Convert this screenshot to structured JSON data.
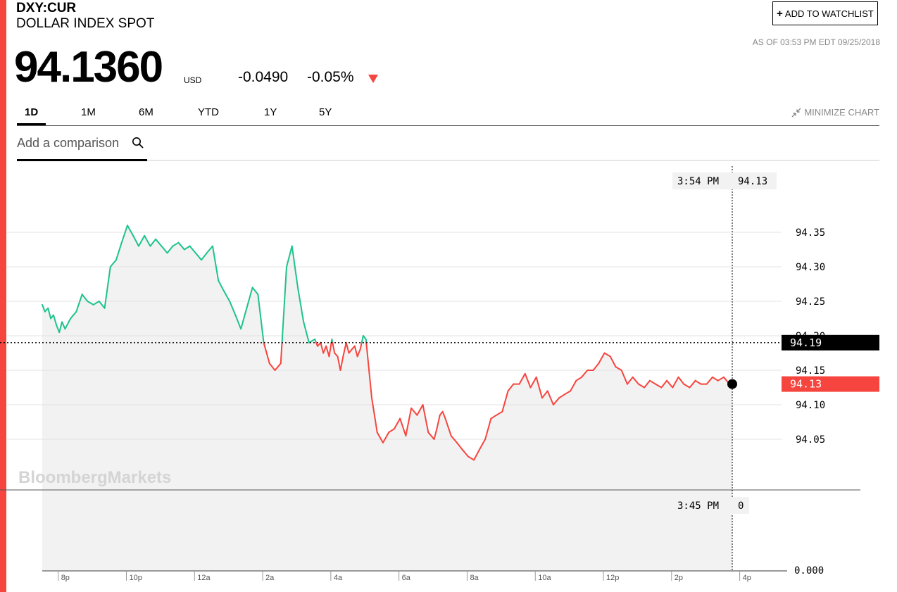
{
  "header": {
    "ticker": "DXY:CUR",
    "name": "DOLLAR INDEX SPOT",
    "watchlist_label": "ADD TO WATCHLIST",
    "as_of": "AS OF 03:53 PM EDT 09/25/2018",
    "price": "94.1360",
    "currency": "USD",
    "change": "-0.0490",
    "change_pct": "-0.05%",
    "direction": "down"
  },
  "tabs": [
    {
      "label": "1D",
      "active": true
    },
    {
      "label": "1M",
      "active": false
    },
    {
      "label": "6M",
      "active": false
    },
    {
      "label": "YTD",
      "active": false
    },
    {
      "label": "1Y",
      "active": false
    },
    {
      "label": "5Y",
      "active": false
    }
  ],
  "minimize_label": "MINIMIZE CHART",
  "comparison": {
    "placeholder": "Add a comparison"
  },
  "colors": {
    "accent": "#f6453e",
    "up": "#1ec38b",
    "down": "#f6453e",
    "area": "#f2f2f2",
    "prev_close_bg": "#000000"
  },
  "chart_data": {
    "type": "line",
    "watermark": "BloombergMarkets",
    "x_ticks": [
      "8p",
      "10p",
      "12a",
      "2a",
      "4a",
      "6a",
      "8a",
      "10a",
      "12p",
      "2p",
      "4p"
    ],
    "y_ticks": [
      "94.35",
      "94.30",
      "94.25",
      "94.20",
      "94.15",
      "94.10",
      "94.05"
    ],
    "ylim": [
      94.0,
      94.4
    ],
    "volume_axis_label": "0.000",
    "previous_close": 94.19,
    "previous_close_label": "94.19",
    "last_value": 94.13,
    "last_value_label": "94.13",
    "crosshair_top": {
      "time": "3:54 PM",
      "value": "94.13"
    },
    "crosshair_bottom": {
      "time": "3:45 PM",
      "value": "0"
    },
    "series": [
      {
        "x": [
          19.5,
          19.58,
          19.67,
          19.75,
          19.83,
          19.92,
          20.0,
          20.08,
          20.17,
          20.33,
          20.5,
          20.67,
          20.83,
          21.0,
          21.17,
          21.33,
          21.5,
          21.67,
          21.83,
          22.0,
          22.17,
          22.33,
          22.5,
          22.67,
          22.83,
          23.0,
          23.17,
          23.33,
          23.5,
          23.67,
          23.83,
          24.0,
          24.17,
          24.33,
          24.5,
          24.67,
          24.83,
          25.0,
          25.17,
          25.33,
          25.5,
          25.67,
          25.83,
          26.0,
          26.17,
          26.33,
          26.5,
          26.67,
          26.83,
          27.0,
          27.17,
          27.33,
          27.5,
          27.58,
          27.67,
          27.75,
          27.83,
          27.92,
          28.0,
          28.08,
          28.17,
          28.25,
          28.33,
          28.42,
          28.5,
          28.58,
          28.67,
          28.75,
          28.83,
          28.92,
          29.0,
          29.17,
          29.33,
          29.5,
          29.67,
          29.83,
          30.0,
          30.17,
          30.33,
          30.5,
          30.67,
          30.83,
          31.0,
          31.08,
          31.17,
          31.25,
          31.33,
          31.5,
          31.67,
          31.83,
          32.0,
          32.17,
          32.33,
          32.5,
          32.67,
          32.83,
          33.0,
          33.17,
          33.33,
          33.5,
          33.67,
          33.83,
          34.0,
          34.17,
          34.33,
          34.5,
          34.67,
          34.83,
          35.0,
          35.17,
          35.33,
          35.5,
          35.67,
          35.83,
          36.0,
          36.17,
          36.33,
          36.5,
          36.67,
          36.83,
          37.0,
          37.17,
          37.33,
          37.5,
          37.67,
          37.83,
          38.0,
          38.17,
          38.33,
          38.5,
          38.67,
          38.83,
          39.0,
          39.17,
          39.33,
          39.5,
          39.67,
          39.75
        ],
        "values": [
          94.245,
          94.235,
          94.24,
          94.225,
          94.23,
          94.215,
          94.205,
          94.22,
          94.21,
          94.225,
          94.235,
          94.26,
          94.25,
          94.245,
          94.25,
          94.24,
          94.3,
          94.31,
          94.335,
          94.36,
          94.345,
          94.33,
          94.345,
          94.33,
          94.34,
          94.33,
          94.32,
          94.33,
          94.335,
          94.325,
          94.33,
          94.32,
          94.31,
          94.32,
          94.33,
          94.28,
          94.265,
          94.25,
          94.23,
          94.21,
          94.24,
          94.27,
          94.26,
          94.19,
          94.16,
          94.15,
          94.16,
          94.3,
          94.33,
          94.27,
          94.22,
          94.19,
          94.195,
          94.185,
          94.19,
          94.175,
          94.185,
          94.17,
          94.195,
          94.175,
          94.17,
          94.15,
          94.17,
          94.19,
          94.175,
          94.18,
          94.185,
          94.17,
          94.18,
          94.2,
          94.195,
          94.11,
          94.06,
          94.045,
          94.06,
          94.065,
          94.08,
          94.055,
          94.095,
          94.085,
          94.1,
          94.06,
          94.05,
          94.065,
          94.085,
          94.09,
          94.08,
          94.055,
          94.045,
          94.035,
          94.025,
          94.02,
          94.035,
          94.05,
          94.08,
          94.085,
          94.09,
          94.12,
          94.13,
          94.13,
          94.145,
          94.125,
          94.14,
          94.11,
          94.12,
          94.1,
          94.11,
          94.115,
          94.12,
          94.135,
          94.14,
          94.15,
          94.15,
          94.16,
          94.175,
          94.17,
          94.155,
          94.15,
          94.13,
          94.14,
          94.13,
          94.125,
          94.135,
          94.13,
          94.125,
          94.135,
          94.125,
          94.14,
          94.13,
          94.125,
          94.135,
          94.13,
          94.13,
          94.14,
          94.135,
          94.14,
          94.13,
          94.13
        ]
      }
    ]
  }
}
